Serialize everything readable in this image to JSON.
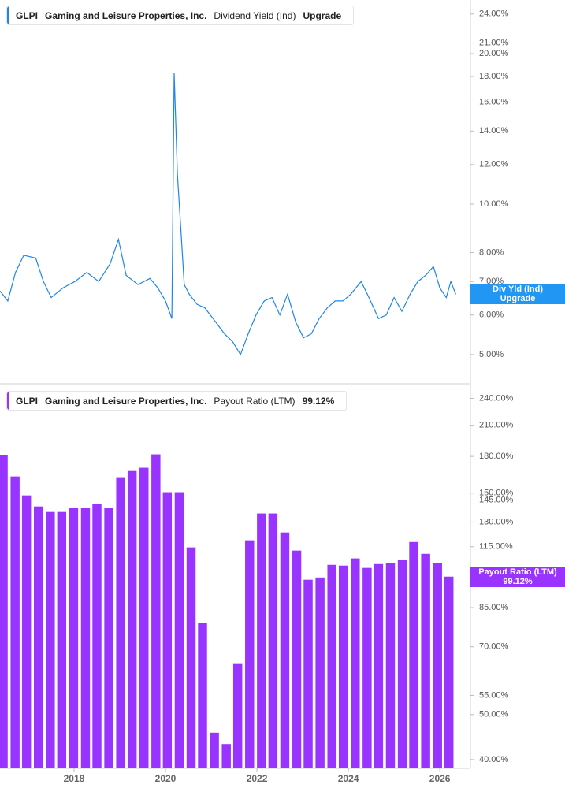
{
  "chart_data": [
    {
      "type": "line",
      "log_scale": true,
      "color": "#1f86e8",
      "legend": {
        "ticker": "GLPI",
        "company": "Gaming and Leisure Properties, Inc.",
        "metric": "Dividend Yield (Ind)",
        "extra": "Upgrade"
      },
      "current_label": {
        "name": "Div Yld (Ind)",
        "value_label": "Upgrade"
      },
      "xlim": [
        2016.38,
        2026.67
      ],
      "ylim": [
        4.37,
        25.6
      ],
      "yticks": [
        {
          "value": 24,
          "label": "24.00%"
        },
        {
          "value": 21,
          "label": "21.00%"
        },
        {
          "value": 20,
          "label": "20.00%"
        },
        {
          "value": 18,
          "label": "18.00%"
        },
        {
          "value": 16,
          "label": "16.00%"
        },
        {
          "value": 14,
          "label": "14.00%"
        },
        {
          "value": 12,
          "label": "12.00%"
        },
        {
          "value": 10,
          "label": "10.00%"
        },
        {
          "value": 8,
          "label": "8.00%"
        },
        {
          "value": 7,
          "label": "7.00%"
        },
        {
          "value": 6,
          "label": "6.00%"
        },
        {
          "value": 5,
          "label": "5.00%"
        }
      ],
      "x": [
        2016.38,
        2016.55,
        2016.72,
        2016.9,
        2017.16,
        2017.33,
        2017.5,
        2017.76,
        2018.02,
        2018.28,
        2018.54,
        2018.79,
        2018.97,
        2019.14,
        2019.4,
        2019.66,
        2019.83,
        2020.0,
        2020.14,
        2020.19,
        2020.26,
        2020.35,
        2020.41,
        2020.52,
        2020.69,
        2020.86,
        2021.04,
        2021.29,
        2021.47,
        2021.64,
        2021.81,
        2021.98,
        2022.16,
        2022.33,
        2022.5,
        2022.67,
        2022.85,
        2023.02,
        2023.19,
        2023.36,
        2023.54,
        2023.71,
        2023.88,
        2024.05,
        2024.28,
        2024.45,
        2024.66,
        2024.83,
        2025.0,
        2025.17,
        2025.35,
        2025.52,
        2025.69,
        2025.86,
        2026.0,
        2026.14,
        2026.24,
        2026.35
      ],
      "values": [
        6.7,
        6.4,
        7.3,
        7.9,
        7.8,
        7.0,
        6.5,
        6.8,
        7.0,
        7.3,
        7.0,
        7.6,
        8.5,
        7.2,
        6.9,
        7.1,
        6.8,
        6.4,
        5.9,
        18.3,
        11.5,
        8.5,
        6.9,
        6.6,
        6.3,
        6.2,
        5.9,
        5.5,
        5.3,
        5.0,
        5.5,
        6.0,
        6.4,
        6.5,
        6.0,
        6.6,
        5.8,
        5.4,
        5.5,
        5.9,
        6.2,
        6.4,
        6.4,
        6.6,
        7.0,
        6.5,
        5.9,
        6.0,
        6.5,
        6.1,
        6.6,
        7.0,
        7.2,
        7.5,
        6.8,
        6.5,
        7.0,
        6.6
      ]
    },
    {
      "type": "bar",
      "log_scale": true,
      "color": "#9933ff",
      "legend": {
        "ticker": "GLPI",
        "company": "Gaming and Leisure Properties, Inc.",
        "metric": "Payout Ratio (LTM)",
        "extra": "99.12%"
      },
      "current_label": {
        "name": "Payout Ratio (LTM)",
        "value_label": "99.12%"
      },
      "xlim": [
        2016.38,
        2026.67
      ],
      "ylim": [
        38.3,
        255
      ],
      "xticks": [
        2018,
        2020,
        2022,
        2024,
        2026
      ],
      "yticks": [
        {
          "value": 240,
          "label": "240.00%"
        },
        {
          "value": 210,
          "label": "210.00%"
        },
        {
          "value": 180,
          "label": "180.00%"
        },
        {
          "value": 150,
          "label": "150.00%"
        },
        {
          "value": 145,
          "label": "145.00%"
        },
        {
          "value": 130,
          "label": "130.00%"
        },
        {
          "value": 115,
          "label": "115.00%"
        },
        {
          "value": 85,
          "label": "85.00%"
        },
        {
          "value": 70,
          "label": "70.00%"
        },
        {
          "value": 55,
          "label": "55.00%"
        },
        {
          "value": 50,
          "label": "50.00%"
        },
        {
          "value": 40,
          "label": "40.00%"
        }
      ],
      "x": [
        2016.45,
        2016.71,
        2016.96,
        2017.22,
        2017.48,
        2017.73,
        2017.99,
        2018.25,
        2018.5,
        2018.76,
        2019.02,
        2019.27,
        2019.53,
        2019.79,
        2020.04,
        2020.3,
        2020.56,
        2020.81,
        2021.07,
        2021.33,
        2021.58,
        2021.84,
        2022.1,
        2022.35,
        2022.61,
        2022.87,
        2023.12,
        2023.38,
        2023.64,
        2023.89,
        2024.15,
        2024.41,
        2024.66,
        2024.92,
        2025.18,
        2025.43,
        2025.69,
        2025.95,
        2026.2
      ],
      "values": [
        181,
        162.9,
        148.3,
        140.4,
        136.6,
        136.6,
        139.3,
        139.3,
        142.1,
        139.3,
        162.3,
        167.4,
        170.1,
        181.8,
        150.7,
        150.7,
        114.6,
        78.7,
        45.7,
        43.2,
        64.5,
        118.7,
        135.6,
        135.6,
        123.4,
        112.8,
        97.6,
        98.7,
        105.1,
        104.7,
        108.5,
        103.5,
        105.5,
        105.9,
        107.6,
        117.7,
        111.0,
        105.9,
        99.12
      ]
    }
  ]
}
